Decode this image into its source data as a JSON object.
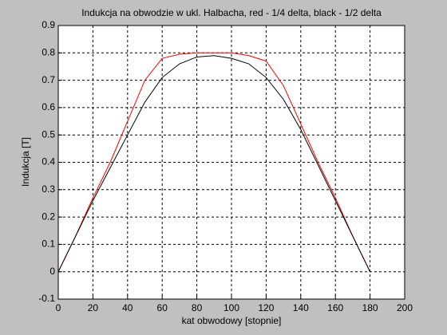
{
  "chart_data": {
    "type": "line",
    "title": "Indukcja na obwodzie w ukl. Halbacha, red - 1/4 delta, black - 1/2 delta",
    "xlabel": "kat obwodowy [stopnie]",
    "ylabel": "Indukcja [T]",
    "x": [
      0,
      10,
      20,
      30,
      40,
      50,
      60,
      70,
      80,
      90,
      100,
      110,
      120,
      130,
      140,
      150,
      160,
      170,
      180
    ],
    "series": [
      {
        "color": "#ff0000",
        "values": [
          0,
          0.13,
          0.27,
          0.4,
          0.55,
          0.7,
          0.78,
          0.795,
          0.8,
          0.8,
          0.8,
          0.79,
          0.77,
          0.68,
          0.54,
          0.4,
          0.27,
          0.13,
          0
        ]
      },
      {
        "color": "#000000",
        "values": [
          0,
          0.13,
          0.26,
          0.38,
          0.5,
          0.62,
          0.71,
          0.76,
          0.785,
          0.79,
          0.78,
          0.76,
          0.71,
          0.63,
          0.52,
          0.39,
          0.26,
          0.13,
          0
        ]
      }
    ],
    "xlim": [
      0,
      200
    ],
    "xticks": [
      0,
      20,
      40,
      60,
      80,
      100,
      120,
      140,
      160,
      180,
      200
    ],
    "ylim": [
      -0.1,
      0.9
    ],
    "yticks": [
      -0.1,
      0,
      0.1,
      0.2,
      0.3,
      0.4,
      0.5,
      0.6,
      0.7,
      0.8,
      0.9
    ],
    "grid": true
  }
}
